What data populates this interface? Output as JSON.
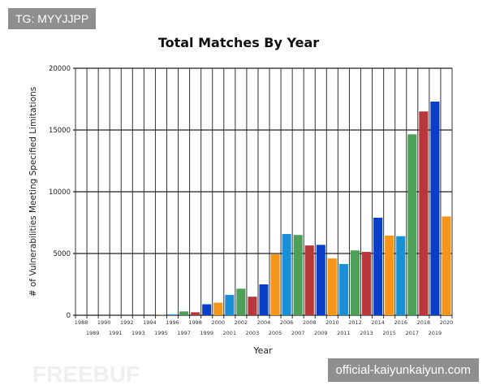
{
  "chart_data": {
    "type": "bar",
    "title": "Total Matches By Year",
    "xlabel": "Year",
    "ylabel": "# of Vulnerabilities Meeting Specified Limitations",
    "ylim": [
      0,
      20000
    ],
    "yticks": [
      0,
      5000,
      10000,
      15000,
      20000
    ],
    "grid": true,
    "legend": "none",
    "categories": [
      "1988",
      "1989",
      "1990",
      "1991",
      "1992",
      "1993",
      "1994",
      "1995",
      "1996",
      "1997",
      "1998",
      "1999",
      "2000",
      "2001",
      "2002",
      "2003",
      "2004",
      "2005",
      "2006",
      "2007",
      "2008",
      "2009",
      "2010",
      "2011",
      "2012",
      "2013",
      "2014",
      "2015",
      "2016",
      "2017",
      "2018",
      "2019",
      "2020"
    ],
    "values": [
      5,
      5,
      5,
      5,
      5,
      5,
      10,
      20,
      75,
      310,
      240,
      890,
      1020,
      1650,
      2150,
      1500,
      2500,
      4930,
      6580,
      6500,
      5650,
      5700,
      4600,
      4150,
      5250,
      5130,
      7900,
      6450,
      6400,
      14650,
      16500,
      17300,
      8000
    ],
    "colors": [
      "#1a8fd6",
      "#4e9f58",
      "#b8373a",
      "#0a3ec6",
      "#f5961a"
    ]
  },
  "watermarks": {
    "top_left": "TG: MYYJJPP",
    "bottom_right": "official-kaiyunkaiyun.com",
    "logo": "FREEBUF"
  }
}
